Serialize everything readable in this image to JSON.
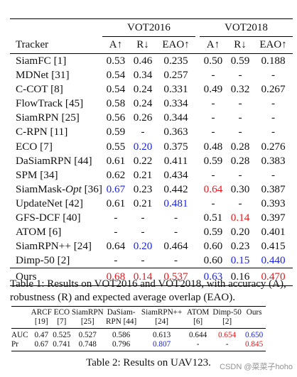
{
  "table1": {
    "header_tracker": "Tracker",
    "group1": "VOT2016",
    "group2": "VOT2018",
    "metrics": [
      "A↑",
      "R↓",
      "EAO↑",
      "A↑",
      "R↓",
      "EAO↑"
    ],
    "rows": [
      {
        "name": "SiamFC [1]",
        "v": [
          "0.53",
          "0.46",
          "0.235",
          "0.50",
          "0.59",
          "0.188"
        ]
      },
      {
        "name": "MDNet [31]",
        "v": [
          "0.54",
          "0.34",
          "0.257",
          "-",
          "-",
          "-"
        ]
      },
      {
        "name": "C-COT [8]",
        "v": [
          "0.54",
          "0.24",
          "0.331",
          "0.49",
          "0.32",
          "0.267"
        ]
      },
      {
        "name": "FlowTrack [45]",
        "v": [
          "0.58",
          "0.24",
          "0.334",
          "-",
          "-",
          "-"
        ]
      },
      {
        "name": "SiamRPN [25]",
        "v": [
          "0.56",
          "0.26",
          "0.344",
          "-",
          "-",
          "-"
        ]
      },
      {
        "name": "C-RPN [11]",
        "v": [
          "0.59",
          "-",
          "0.363",
          "-",
          "-",
          "-"
        ]
      },
      {
        "name": "ECO [7]",
        "v": [
          "0.55",
          "0.20",
          "0.375",
          "0.48",
          "0.28",
          "0.276"
        ]
      },
      {
        "name": "DaSiamRPN [44]",
        "v": [
          "0.61",
          "0.22",
          "0.411",
          "0.59",
          "0.28",
          "0.383"
        ]
      },
      {
        "name": "SPM [34]",
        "v": [
          "0.62",
          "0.21",
          "0.434",
          "-",
          "-",
          "-"
        ]
      },
      {
        "name_pre": "SiamMask-",
        "name_em": "Opt",
        "name_post": " [36]",
        "v": [
          "0.67",
          "0.23",
          "0.442",
          "0.64",
          "0.30",
          "0.387"
        ]
      },
      {
        "name": "UpdateNet [42]",
        "v": [
          "0.61",
          "0.21",
          "0.481",
          "-",
          "-",
          "0.393"
        ]
      },
      {
        "name": "GFS-DCF [40]",
        "v": [
          "-",
          "-",
          "-",
          "0.51",
          "0.14",
          "0.397"
        ]
      },
      {
        "name": "ATOM [6]",
        "v": [
          "-",
          "-",
          "-",
          "0.59",
          "0.20",
          "0.401"
        ]
      },
      {
        "name": "SiamRPN++ [24]",
        "v": [
          "0.64",
          "0.20",
          "0.464",
          "0.60",
          "0.23",
          "0.415"
        ]
      },
      {
        "name": "Dimp-50 [2]",
        "v": [
          "-",
          "-",
          "-",
          "0.60",
          "0.15",
          "0.440"
        ]
      }
    ],
    "ours": {
      "name": "Ours",
      "v": [
        "0.68",
        "0.14",
        "0.537",
        "0.63",
        "0.16",
        "0.470"
      ]
    },
    "colors": {
      "red": "#e3171b",
      "blue": "#1a22e6"
    }
  },
  "caption1": "Table 1: Results on VOT2016 and VOT2018, with accuracy (A), robustness (R) and expected average overlap (EAO).",
  "table2": {
    "head1": [
      "ARCF",
      "ECO",
      "SiamRPN",
      "DaSiam-",
      "SiamRPN++",
      "ATOM",
      "Dimp-50",
      "Ours"
    ],
    "head2": [
      "[19]",
      "[7]",
      "[25]",
      "RPN [44]",
      "[24]",
      "[6]",
      "[2]",
      ""
    ],
    "rows": [
      {
        "label": "AUC",
        "v": [
          "0.47",
          "0.525",
          "0.527",
          "0.586",
          "0.613",
          "0.644",
          "0.654",
          "0.650"
        ]
      },
      {
        "label": "Pr",
        "v": [
          "0.67",
          "0.741",
          "0.748",
          "0.796",
          "0.807",
          "-",
          "-",
          "0.845"
        ]
      }
    ]
  },
  "caption2": "Table 2: Results on UAV123.",
  "watermark": "CSDN @菜菜子hoho"
}
